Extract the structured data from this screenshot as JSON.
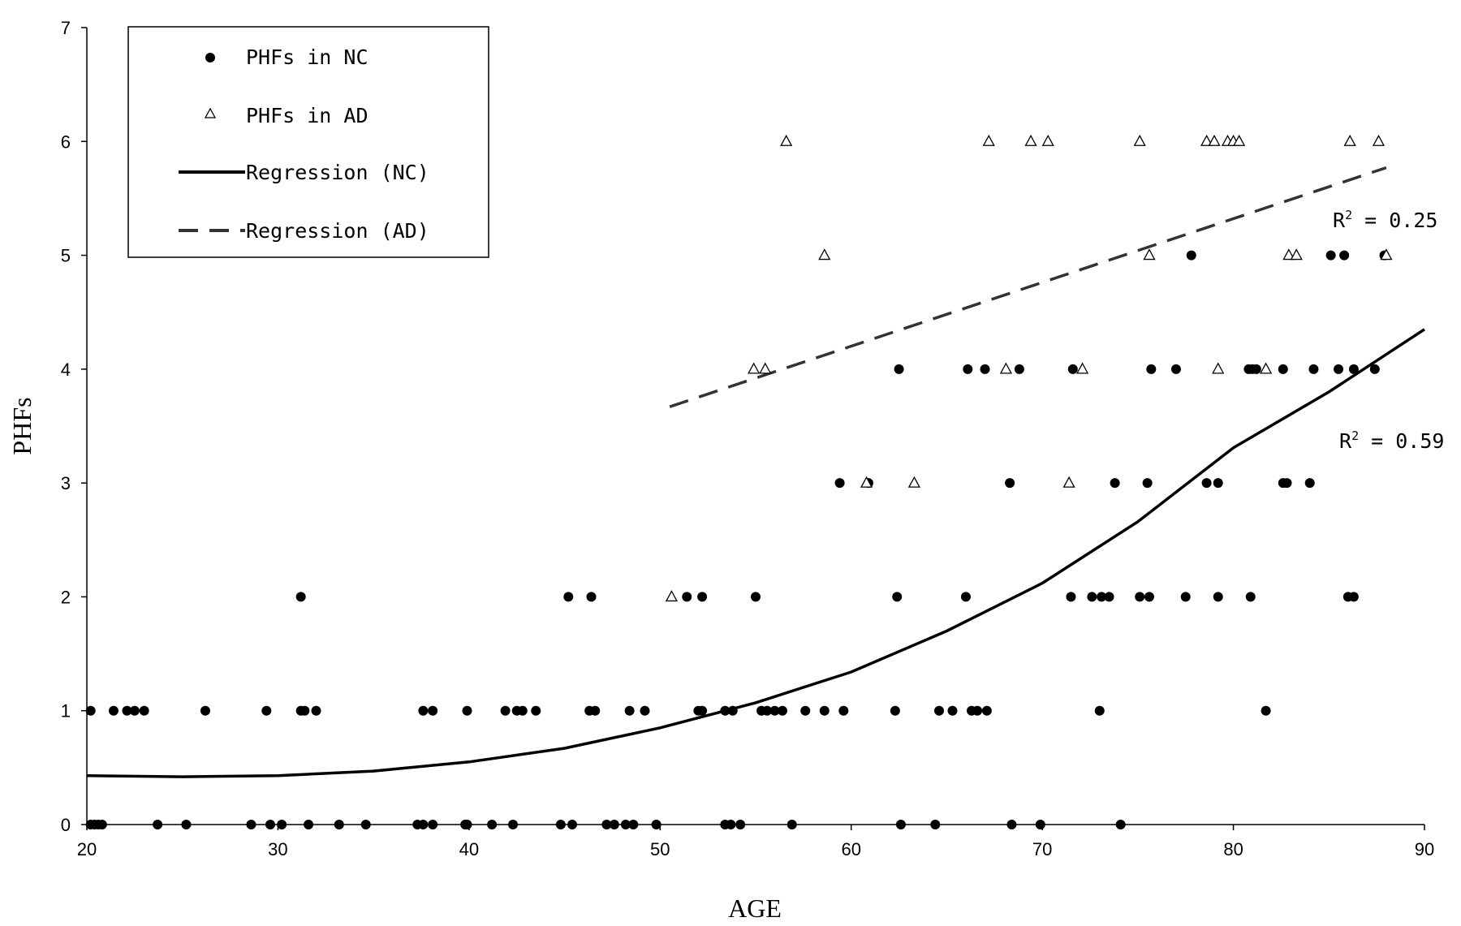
{
  "chart_data": {
    "type": "scatter",
    "xlabel": "AGE",
    "ylabel": "PHFs",
    "xlim": [
      20,
      90
    ],
    "ylim": [
      0,
      7
    ],
    "x_ticks": [
      "20",
      "30",
      "40",
      "50",
      "60",
      "70",
      "80",
      "90"
    ],
    "y_ticks": [
      "0",
      "1",
      "2",
      "3",
      "4",
      "5",
      "6",
      "7"
    ],
    "grid": false,
    "legend_position": "top-left",
    "legend": {
      "nc_points": "PHFs in NC",
      "ad_points": "PHFs in AD",
      "nc_regression": "Regression (NC)",
      "ad_regression": "Regression (AD)"
    },
    "annotations": {
      "ad_r2_prefix": "R",
      "ad_r2_sup": "2",
      "ad_r2_value": " = 0.25",
      "nc_r2_prefix": "R",
      "nc_r2_sup": "2",
      "nc_r2_value": " = 0.59"
    },
    "series": [
      {
        "name": "PHFs in NC",
        "marker": "filled-circle",
        "color": "#000000",
        "points": [
          [
            20.2,
            0
          ],
          [
            20.4,
            0
          ],
          [
            20.6,
            0
          ],
          [
            20.8,
            0
          ],
          [
            23.7,
            0
          ],
          [
            25.2,
            0
          ],
          [
            28.6,
            0
          ],
          [
            29.6,
            0
          ],
          [
            30.2,
            0
          ],
          [
            31.6,
            0
          ],
          [
            33.2,
            0
          ],
          [
            34.6,
            0
          ],
          [
            37.3,
            0
          ],
          [
            37.6,
            0
          ],
          [
            38.1,
            0
          ],
          [
            39.8,
            0
          ],
          [
            39.9,
            0
          ],
          [
            41.2,
            0
          ],
          [
            42.3,
            0
          ],
          [
            44.8,
            0
          ],
          [
            45.4,
            0
          ],
          [
            47.2,
            0
          ],
          [
            47.6,
            0
          ],
          [
            48.2,
            0
          ],
          [
            48.6,
            0
          ],
          [
            49.8,
            0
          ],
          [
            53.4,
            0
          ],
          [
            53.7,
            0
          ],
          [
            54.2,
            0
          ],
          [
            56.9,
            0
          ],
          [
            62.6,
            0
          ],
          [
            64.4,
            0
          ],
          [
            68.4,
            0
          ],
          [
            69.9,
            0
          ],
          [
            74.1,
            0
          ],
          [
            20.2,
            1
          ],
          [
            21.4,
            1
          ],
          [
            22.1,
            1
          ],
          [
            22.5,
            1
          ],
          [
            23.0,
            1
          ],
          [
            26.2,
            1
          ],
          [
            29.4,
            1
          ],
          [
            31.2,
            1
          ],
          [
            31.4,
            1
          ],
          [
            32.0,
            1
          ],
          [
            37.6,
            1
          ],
          [
            38.1,
            1
          ],
          [
            39.9,
            1
          ],
          [
            41.9,
            1
          ],
          [
            42.5,
            1
          ],
          [
            42.8,
            1
          ],
          [
            43.5,
            1
          ],
          [
            46.3,
            1
          ],
          [
            46.6,
            1
          ],
          [
            48.4,
            1
          ],
          [
            49.2,
            1
          ],
          [
            52.0,
            1
          ],
          [
            52.2,
            1
          ],
          [
            53.4,
            1
          ],
          [
            53.8,
            1
          ],
          [
            55.3,
            1
          ],
          [
            55.6,
            1
          ],
          [
            56.0,
            1
          ],
          [
            56.4,
            1
          ],
          [
            57.6,
            1
          ],
          [
            58.6,
            1
          ],
          [
            59.6,
            1
          ],
          [
            62.3,
            1
          ],
          [
            64.6,
            1
          ],
          [
            65.3,
            1
          ],
          [
            66.3,
            1
          ],
          [
            66.6,
            1
          ],
          [
            67.1,
            1
          ],
          [
            73.0,
            1
          ],
          [
            81.7,
            1
          ],
          [
            31.2,
            2
          ],
          [
            45.2,
            2
          ],
          [
            46.4,
            2
          ],
          [
            51.4,
            2
          ],
          [
            52.2,
            2
          ],
          [
            55.0,
            2
          ],
          [
            62.4,
            2
          ],
          [
            66.0,
            2
          ],
          [
            71.5,
            2
          ],
          [
            72.6,
            2
          ],
          [
            73.1,
            2
          ],
          [
            73.5,
            2
          ],
          [
            75.1,
            2
          ],
          [
            75.6,
            2
          ],
          [
            77.5,
            2
          ],
          [
            79.2,
            2
          ],
          [
            80.9,
            2
          ],
          [
            86.0,
            2
          ],
          [
            86.3,
            2
          ],
          [
            59.4,
            3
          ],
          [
            60.9,
            3
          ],
          [
            68.3,
            3
          ],
          [
            73.8,
            3
          ],
          [
            75.5,
            3
          ],
          [
            78.6,
            3
          ],
          [
            79.2,
            3
          ],
          [
            82.6,
            3
          ],
          [
            82.8,
            3
          ],
          [
            84.0,
            3
          ],
          [
            62.5,
            4
          ],
          [
            66.1,
            4
          ],
          [
            67.0,
            4
          ],
          [
            68.8,
            4
          ],
          [
            71.6,
            4
          ],
          [
            75.7,
            4
          ],
          [
            77.0,
            4
          ],
          [
            80.8,
            4
          ],
          [
            81.0,
            4
          ],
          [
            81.2,
            4
          ],
          [
            82.6,
            4
          ],
          [
            84.2,
            4
          ],
          [
            85.5,
            4
          ],
          [
            86.3,
            4
          ],
          [
            87.4,
            4
          ],
          [
            77.8,
            5
          ],
          [
            85.1,
            5
          ],
          [
            85.8,
            5
          ],
          [
            87.9,
            5
          ]
        ]
      },
      {
        "name": "PHFs in AD",
        "marker": "open-triangle",
        "color": "#000000",
        "points": [
          [
            50.6,
            2
          ],
          [
            60.8,
            3
          ],
          [
            63.3,
            3
          ],
          [
            71.4,
            3
          ],
          [
            54.9,
            4
          ],
          [
            55.5,
            4
          ],
          [
            68.1,
            4
          ],
          [
            72.1,
            4
          ],
          [
            79.2,
            4
          ],
          [
            81.7,
            4
          ],
          [
            58.6,
            5
          ],
          [
            75.6,
            5
          ],
          [
            82.9,
            5
          ],
          [
            83.3,
            5
          ],
          [
            88.0,
            5
          ],
          [
            56.6,
            6
          ],
          [
            67.2,
            6
          ],
          [
            69.4,
            6
          ],
          [
            70.3,
            6
          ],
          [
            75.1,
            6
          ],
          [
            78.6,
            6
          ],
          [
            79.0,
            6
          ],
          [
            79.7,
            6
          ],
          [
            80.0,
            6
          ],
          [
            80.3,
            6
          ],
          [
            86.1,
            6
          ],
          [
            87.6,
            6
          ]
        ]
      },
      {
        "name": "Regression (NC)",
        "line": "solid",
        "color": "#000000",
        "points": [
          [
            20,
            0.43
          ],
          [
            25,
            0.42
          ],
          [
            30,
            0.43
          ],
          [
            35,
            0.47
          ],
          [
            40,
            0.55
          ],
          [
            45,
            0.67
          ],
          [
            50,
            0.85
          ],
          [
            55,
            1.07
          ],
          [
            60,
            1.34
          ],
          [
            65,
            1.7
          ],
          [
            70,
            2.12
          ],
          [
            75,
            2.66
          ],
          [
            80,
            3.31
          ],
          [
            85,
            3.8
          ],
          [
            90,
            4.35
          ]
        ]
      },
      {
        "name": "Regression (AD)",
        "line": "dashed",
        "color": "#333333",
        "points": [
          [
            50.5,
            3.67
          ],
          [
            88,
            5.77
          ]
        ]
      }
    ]
  }
}
